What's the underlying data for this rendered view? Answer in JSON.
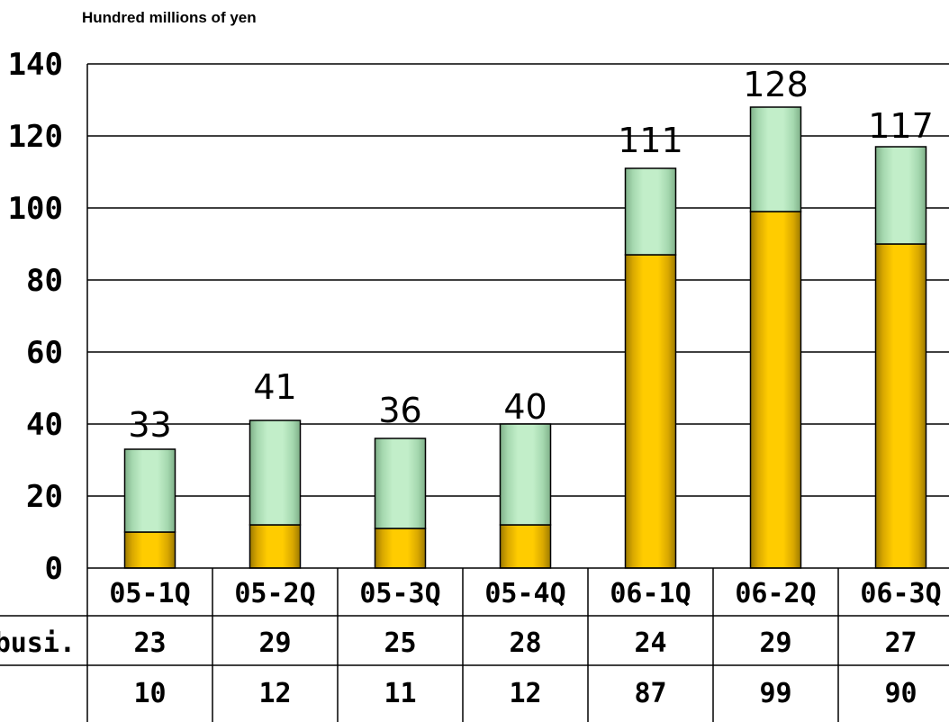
{
  "chart_data": {
    "type": "bar",
    "stacked": true,
    "unit_label": "Hundred millions of yen",
    "categories": [
      "05-1Q",
      "05-2Q",
      "05-3Q",
      "05-4Q",
      "06-1Q",
      "06-2Q",
      "06-3Q"
    ],
    "series": [
      {
        "values": [
          10,
          12,
          11,
          12,
          87,
          99,
          90
        ],
        "color": "#FFCC00"
      },
      {
        "values": [
          23,
          29,
          25,
          28,
          24,
          29,
          27
        ],
        "color": "#B5E8BF"
      }
    ],
    "totals": [
      33,
      41,
      36,
      40,
      111,
      128,
      117
    ],
    "ylim": [
      0,
      140
    ],
    "yticks": [
      0,
      20,
      40,
      60,
      80,
      100,
      120,
      140
    ],
    "grid": true,
    "table_rows": [
      {
        "label": "busi.",
        "values": [
          23,
          29,
          25,
          28,
          24,
          29,
          27
        ]
      },
      {
        "label": "",
        "values": [
          10,
          12,
          11,
          12,
          87,
          99,
          90
        ]
      }
    ]
  }
}
